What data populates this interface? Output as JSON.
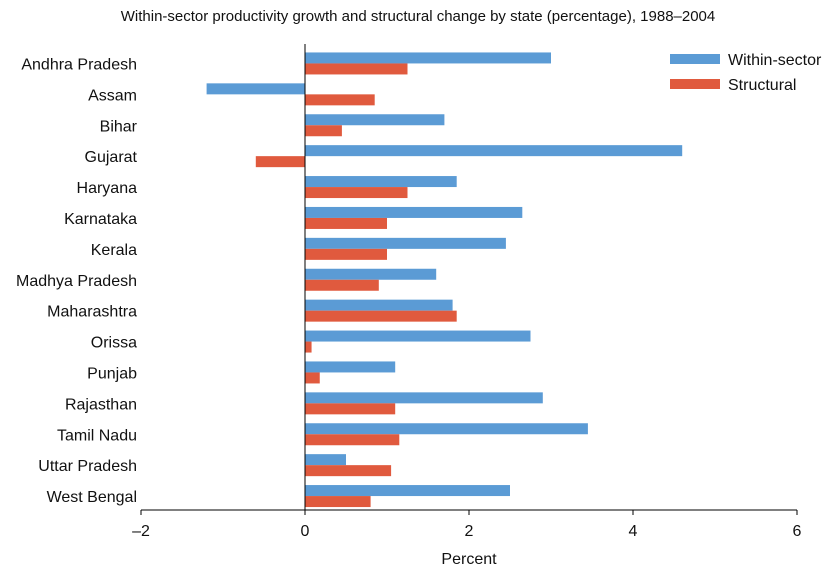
{
  "chart_data": {
    "type": "bar",
    "orientation": "horizontal",
    "title": "Within-sector productivity growth and structural change by state (percentage), 1988–2004",
    "xlabel": "Percent",
    "ylabel": "",
    "xlim": [
      -2,
      6
    ],
    "xticks": [
      -2,
      0,
      2,
      4,
      6
    ],
    "xtick_labels": [
      "–2",
      "0",
      "2",
      "4",
      "6"
    ],
    "grid": false,
    "legend_position": "top-right",
    "categories": [
      "Andhra Pradesh",
      "Assam",
      "Bihar",
      "Gujarat",
      "Haryana",
      "Karnataka",
      "Kerala",
      "Madhya Pradesh",
      "Maharashtra",
      "Orissa",
      "Punjab",
      "Rajasthan",
      "Tamil Nadu",
      "Uttar Pradesh",
      "West Bengal"
    ],
    "series": [
      {
        "name": "Within-sector",
        "color": "#5b9bd5",
        "values": [
          3.0,
          -1.2,
          1.7,
          4.6,
          1.85,
          2.65,
          2.45,
          1.6,
          1.8,
          2.75,
          1.1,
          2.9,
          3.45,
          0.5,
          2.5
        ]
      },
      {
        "name": "Structural",
        "color": "#e05a3e",
        "values": [
          1.25,
          0.85,
          0.45,
          -0.6,
          1.25,
          1.0,
          1.0,
          0.9,
          1.85,
          0.08,
          0.18,
          1.1,
          1.15,
          1.05,
          0.8
        ]
      }
    ]
  }
}
